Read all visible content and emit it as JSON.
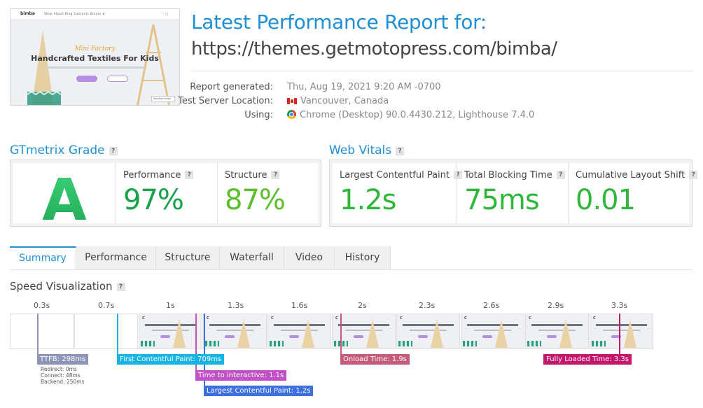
{
  "thumbnail": {
    "logo": "bimba",
    "nav": "Shop   About   Blog   Contacts   Blocks ▾",
    "subtitle": "Mini Factory",
    "title": "Handcrafted Textiles For Kids",
    "chat": "Send an email"
  },
  "report": {
    "title": "Latest Performance Report for:",
    "url": "https://themes.getmotopress.com/bimba/",
    "meta": [
      {
        "key": "Report generated:",
        "value": "Thu, Aug 19, 2021 9:20 AM -0700"
      },
      {
        "key": "Test Server Location:",
        "value": "Vancouver, Canada",
        "icon": "canada-flag-icon"
      },
      {
        "key": "Using:",
        "value": "Chrome (Desktop) 90.0.4430.212, Lighthouse 7.4.0",
        "icon": "chrome-icon"
      }
    ]
  },
  "grade": {
    "section_title": "GTmetrix Grade",
    "letter": "A",
    "performance_label": "Performance",
    "performance_value": "97%",
    "structure_label": "Structure",
    "structure_value": "87%"
  },
  "vitals": {
    "section_title": "Web Vitals",
    "lcp_label": "Largest Contentful Paint",
    "lcp_value": "1.2s",
    "tbt_label": "Total Blocking Time",
    "tbt_value": "75ms",
    "cls_label": "Cumulative Layout Shift",
    "cls_value": "0.01"
  },
  "help_glyph": "?",
  "tabs": [
    "Summary",
    "Performance",
    "Structure",
    "Waterfall",
    "Video",
    "History"
  ],
  "active_tab": "Summary",
  "speed": {
    "title": "Speed Visualization",
    "ticks": [
      "0.3s",
      "0.7s",
      "1s",
      "1.3s",
      "1.6s",
      "2s",
      "2.3s",
      "2.6s",
      "2.9s",
      "3.3s"
    ],
    "markers": {
      "ttfb": "TTFB: 298ms",
      "ttfb_details": [
        "Redirect: 0ms",
        "Connect: 48ms",
        "Backend: 250ms"
      ],
      "fcp": "First Contentful Paint: 709ms",
      "tti": "Time to interactive: 1.1s",
      "lcp": "Largest Contentful Paint: 1.2s",
      "onload": "Onload Time: 1.9s",
      "fully_loaded": "Fully Loaded Time: 3.3s"
    },
    "colors": {
      "ttfb": "#8e93b8",
      "fcp": "#15b3e6",
      "tti": "#c150c9",
      "lcp": "#3c6fe0",
      "onload": "#c75a7b",
      "fully_loaded": "#c4166b"
    }
  }
}
